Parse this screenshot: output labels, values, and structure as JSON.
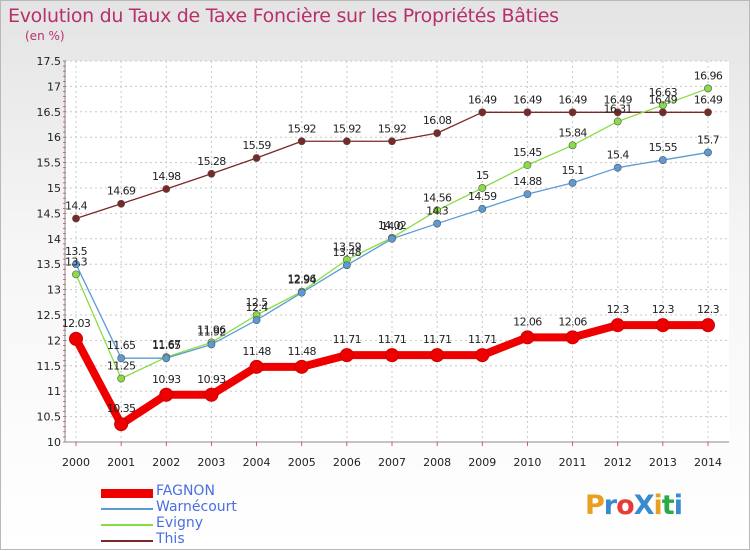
{
  "title": "Evolution du Taux de Taxe Foncière sur les Propriétés Bâties",
  "subtitle": "(en %)",
  "logo": {
    "text": "ProXiti",
    "colors": [
      "#e8a020",
      "#3a8ad0",
      "#e83a3a",
      "#3a8ad0",
      "#e8a020",
      "#2aa84a",
      "#3a8ad0"
    ]
  },
  "chart_data": {
    "type": "line",
    "categories": [
      "2000",
      "2001",
      "2002",
      "2003",
      "2004",
      "2005",
      "2006",
      "2007",
      "2008",
      "2009",
      "2010",
      "2011",
      "2012",
      "2013",
      "2014"
    ],
    "ylim": [
      10,
      17.5
    ],
    "yticks": [
      "10",
      "10.5",
      "11",
      "11.5",
      "12",
      "12.5",
      "13",
      "13.5",
      "14",
      "14.5",
      "15",
      "15.5",
      "16",
      "16.5",
      "17",
      "17.5"
    ],
    "grid": true,
    "legend_position": "bottom-left",
    "series": [
      {
        "name": "FAGNON",
        "color": "#ee0000",
        "values": [
          12.03,
          10.35,
          10.93,
          10.93,
          11.48,
          11.48,
          11.71,
          11.71,
          11.71,
          11.71,
          12.06,
          12.06,
          12.3,
          12.3,
          12.3
        ],
        "labels": [
          "12.03",
          "10.35",
          "10.93",
          "10.93",
          "11.48",
          "11.48",
          "11.71",
          "11.71",
          "11.71",
          "11.71",
          "12.06",
          "12.06",
          "12.3",
          "12.3",
          "12.3"
        ]
      },
      {
        "name": "Warnécourt",
        "color": "#5b9bd5",
        "values": [
          13.5,
          11.65,
          11.65,
          11.92,
          12.4,
          12.94,
          13.48,
          14.0,
          14.3,
          14.59,
          14.88,
          15.1,
          15.4,
          15.55,
          15.7
        ],
        "labels": [
          "13.5",
          "11.65",
          "11.65",
          "11.92",
          "12.4",
          "12.94",
          "13.48",
          "14.0",
          "14.3",
          "14.59",
          "14.88",
          "15.1",
          "15.4",
          "15.55",
          "15.7"
        ]
      },
      {
        "name": "Evigny",
        "color": "#88dd44",
        "values": [
          13.3,
          11.25,
          11.67,
          11.96,
          12.5,
          12.96,
          13.59,
          14.02,
          14.56,
          15.0,
          15.45,
          15.84,
          16.31,
          16.63,
          16.96
        ],
        "labels": [
          "13.3",
          "11.25",
          "11.67",
          "11.96",
          "12.5",
          "12.96",
          "13.59",
          "14.02",
          "14.56",
          "15",
          "15.45",
          "15.84",
          "16.31",
          "16.63",
          "16.96"
        ]
      },
      {
        "name": "This",
        "color": "#7a2828",
        "values": [
          14.4,
          14.69,
          14.98,
          15.28,
          15.59,
          15.92,
          15.92,
          15.92,
          16.08,
          16.49,
          16.49,
          16.49,
          16.49,
          16.49,
          16.49
        ],
        "labels": [
          "14.4",
          "14.69",
          "14.98",
          "15.28",
          "15.59",
          "15.92",
          "15.92",
          "15.92",
          "16.08",
          "16.49",
          "16.49",
          "16.49",
          "16.49",
          "16.49",
          "16.49"
        ]
      }
    ]
  }
}
